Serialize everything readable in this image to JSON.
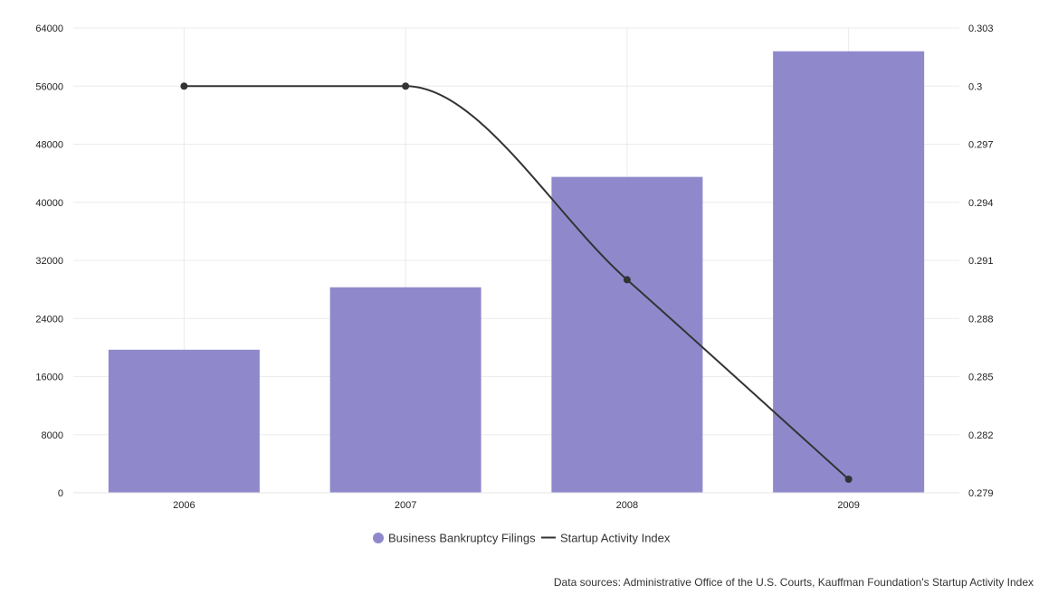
{
  "chart_data": {
    "type": "bar",
    "categories": [
      "2006",
      "2007",
      "2008",
      "2009"
    ],
    "series": [
      {
        "name": "Business Bankruptcy Filings",
        "type": "bar",
        "axis": "left",
        "color": "#8f89cc",
        "values": [
          19700,
          28300,
          43500,
          60800
        ]
      },
      {
        "name": "Startup Activity Index",
        "type": "line",
        "axis": "right",
        "color": "#333333",
        "values": [
          0.3,
          0.3,
          0.29,
          0.2797
        ]
      }
    ],
    "y_left": {
      "lim": [
        0,
        64000
      ],
      "ticks": [
        "0",
        "8000",
        "16000",
        "24000",
        "32000",
        "40000",
        "48000",
        "56000",
        "64000"
      ]
    },
    "y_right": {
      "lim": [
        0.279,
        0.303
      ],
      "ticks": [
        "0.279",
        "0.282",
        "0.285",
        "0.288",
        "0.291",
        "0.294",
        "0.297",
        "0.3",
        "0.303"
      ]
    },
    "grid": true,
    "legend_position": "bottom-center"
  },
  "source_note": "Data sources: Administrative Office of the U.S. Courts, Kauffman Foundation's Startup Activity Index"
}
